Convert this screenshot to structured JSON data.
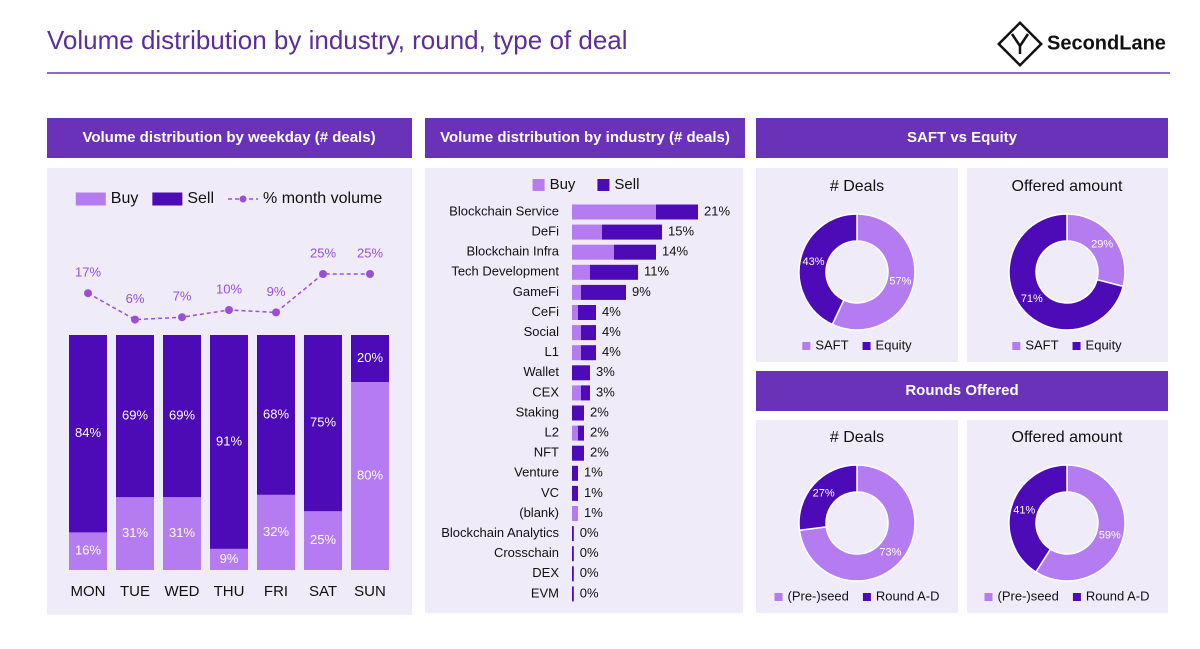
{
  "header": {
    "title": "Volume distribution by industry, round, type of deal",
    "brand": "SecondLane"
  },
  "section_titles": [
    "SAFT vs Equity",
    "Rounds Offered"
  ],
  "chart_data": [
    {
      "type": "bar",
      "stacked": true,
      "title": "Volume distribution by weekday (# deals)",
      "categories": [
        "MON",
        "TUE",
        "WED",
        "THU",
        "FRI",
        "SAT",
        "SUN"
      ],
      "ylim": [
        0,
        100
      ],
      "series": [
        {
          "name": "Buy",
          "color": "#b57cf2",
          "values": [
            16,
            31,
            31,
            9,
            32,
            25,
            80
          ],
          "value_labels": [
            "16%",
            "31%",
            "31%",
            "9%",
            "32%",
            "25%",
            "80%"
          ]
        },
        {
          "name": "Sell",
          "color": "#4c0bb6",
          "values": [
            84,
            69,
            69,
            91,
            68,
            75,
            20
          ],
          "value_labels": [
            "84%",
            "69%",
            "69%",
            "91%",
            "68%",
            "75%",
            "20%"
          ]
        },
        {
          "name": "% month volume",
          "type": "line",
          "line_style": "dashed",
          "color": "#9b4fd8",
          "values": [
            17,
            6,
            7,
            10,
            9,
            25,
            25
          ],
          "value_labels": [
            "17%",
            "6%",
            "7%",
            "10%",
            "9%",
            "25%",
            "25%"
          ]
        }
      ]
    },
    {
      "type": "barh",
      "stacked": true,
      "title": "Volume distribution by industry (# deals)",
      "categories": [
        "Blockchain Service",
        "DeFi",
        "Blockchain Infra",
        "Tech Development",
        "GameFi",
        "CeFi",
        "Social",
        "L1",
        "Wallet",
        "CEX",
        "Staking",
        "L2",
        "NFT",
        "Venture",
        "VC",
        "(blank)",
        "Blockchain Analytics",
        "Crosschain",
        "DEX",
        "EVM"
      ],
      "series": [
        {
          "name": "Buy",
          "color": "#b57cf2",
          "values": [
            14,
            5,
            7,
            3,
            1.5,
            1,
            1.5,
            1.5,
            0,
            1.5,
            0,
            1,
            0,
            0,
            0,
            1,
            0,
            0,
            0,
            0
          ]
        },
        {
          "name": "Sell",
          "color": "#4c0bb6",
          "values": [
            7,
            10,
            7,
            8,
            7.5,
            3,
            2.5,
            2.5,
            3,
            1.5,
            2,
            1,
            2,
            1,
            1,
            0,
            0.3,
            0.3,
            0.3,
            0.3
          ]
        }
      ],
      "totals": [
        21,
        15,
        14,
        11,
        9,
        4,
        4,
        4,
        3,
        3,
        2,
        2,
        2,
        1,
        1,
        1,
        0.3,
        0.3,
        0.3,
        0.3
      ],
      "total_labels": [
        "21%",
        "15%",
        "14%",
        "11%",
        "9%",
        "4%",
        "4%",
        "4%",
        "3%",
        "3%",
        "2%",
        "2%",
        "2%",
        "1%",
        "1%",
        "1%",
        "0%",
        "0%",
        "0%",
        "0%"
      ]
    },
    {
      "type": "pie",
      "donut": true,
      "title": "# Deals",
      "categories": [
        "SAFT",
        "Equity"
      ],
      "values": [
        57,
        43
      ],
      "value_labels": [
        "57%",
        "43%"
      ],
      "colors": [
        "#b57cf2",
        "#4c0bb6"
      ]
    },
    {
      "type": "pie",
      "donut": true,
      "title": "Offered amount",
      "categories": [
        "SAFT",
        "Equity"
      ],
      "values": [
        29,
        71
      ],
      "value_labels": [
        "29%",
        "71%"
      ],
      "colors": [
        "#b57cf2",
        "#4c0bb6"
      ]
    },
    {
      "type": "pie",
      "donut": true,
      "title": "# Deals",
      "categories": [
        "(Pre-)seed",
        "Round A-D"
      ],
      "values": [
        73,
        27
      ],
      "value_labels": [
        "73%",
        "27%"
      ],
      "colors": [
        "#b57cf2",
        "#4c0bb6"
      ]
    },
    {
      "type": "pie",
      "donut": true,
      "title": "Offered amount",
      "categories": [
        "(Pre-)seed",
        "Round A-D"
      ],
      "values": [
        59,
        41
      ],
      "value_labels": [
        "59%",
        "41%"
      ],
      "colors": [
        "#b57cf2",
        "#4c0bb6"
      ]
    }
  ]
}
